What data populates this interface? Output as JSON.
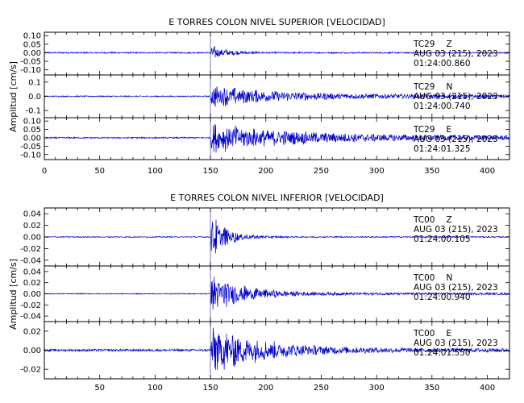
{
  "chart_data": [
    {
      "type": "line",
      "title": "E TORRES COLON NIVEL SUPERIOR [VELOCIDAD]",
      "ylabel": "Amplitud [cm/s]",
      "xlim": [
        0,
        420
      ],
      "x_ticks": [
        "0",
        "50",
        "100",
        "150",
        "200",
        "250",
        "300",
        "350",
        "400"
      ],
      "series_color": "#0000cc",
      "panels": [
        {
          "name": "TC29 Z",
          "station": "TC29",
          "component": "Z",
          "date": "AUG 03 (215), 2023",
          "time": "01:24:00.860",
          "ylim": [
            -0.13,
            0.12
          ],
          "y_ticks": [
            "0.10",
            "0.05",
            "0.00",
            "-0.05",
            "-0.10"
          ],
          "noise": 0.004,
          "arrival": 150,
          "peak": 0.045,
          "decay": 15,
          "coda": 0.004
        },
        {
          "name": "TC29 N",
          "station": "TC29",
          "component": "N",
          "date": "AUG 03 (215), 2023",
          "time": "01:24:00.740",
          "ylim": [
            -0.15,
            0.15
          ],
          "y_ticks": [
            "0.1",
            "0.0",
            "-0.1"
          ],
          "noise": 0.004,
          "arrival": 150,
          "peak": 0.075,
          "decay": 60,
          "coda": 0.012
        },
        {
          "name": "TC29 E",
          "station": "TC29",
          "component": "E",
          "date": "AUG 03 (215), 2023",
          "time": "01:24:01.325",
          "ylim": [
            -0.13,
            0.12
          ],
          "y_ticks": [
            "0.10",
            "0.05",
            "0.00",
            "-0.05",
            "-0.10"
          ],
          "noise": 0.004,
          "arrival": 150,
          "peak": 0.085,
          "decay": 75,
          "coda": 0.012
        }
      ]
    },
    {
      "type": "line",
      "title": "E TORRES COLON NIVEL INFERIOR [VELOCIDAD]",
      "ylabel": "Amplitud [cm/s]",
      "xlim": [
        0,
        420
      ],
      "x_ticks": [
        "50",
        "100",
        "150",
        "200",
        "250",
        "300",
        "350",
        "400"
      ],
      "series_color": "#0000cc",
      "panels": [
        {
          "name": "TC00 Z",
          "station": "TC00",
          "component": "Z",
          "date": "AUG 03 (215), 2023",
          "time": "01:24:00.105",
          "ylim": [
            -0.05,
            0.05
          ],
          "y_ticks": [
            "0.04",
            "0.02",
            "0.00",
            "-0.02",
            "-0.04"
          ],
          "noise": 0.0008,
          "arrival": 150,
          "peak": 0.045,
          "decay": 14,
          "coda": 0.001
        },
        {
          "name": "TC00 N",
          "station": "TC00",
          "component": "N",
          "date": "AUG 03 (215), 2023",
          "time": "01:24:00.940",
          "ylim": [
            -0.05,
            0.05
          ],
          "y_ticks": [
            "0.04",
            "0.02",
            "0.00",
            "-0.02",
            "-0.04"
          ],
          "noise": 0.0008,
          "arrival": 150,
          "peak": 0.04,
          "decay": 28,
          "coda": 0.002
        },
        {
          "name": "TC00 E",
          "station": "TC00",
          "component": "E",
          "date": "AUG 03 (215), 2023",
          "time": "01:24:01.550",
          "ylim": [
            -0.03,
            0.03
          ],
          "y_ticks": [
            "0.02",
            "0.00",
            "-0.02"
          ],
          "noise": 0.0012,
          "arrival": 150,
          "peak": 0.028,
          "decay": 45,
          "coda": 0.002
        }
      ]
    }
  ]
}
